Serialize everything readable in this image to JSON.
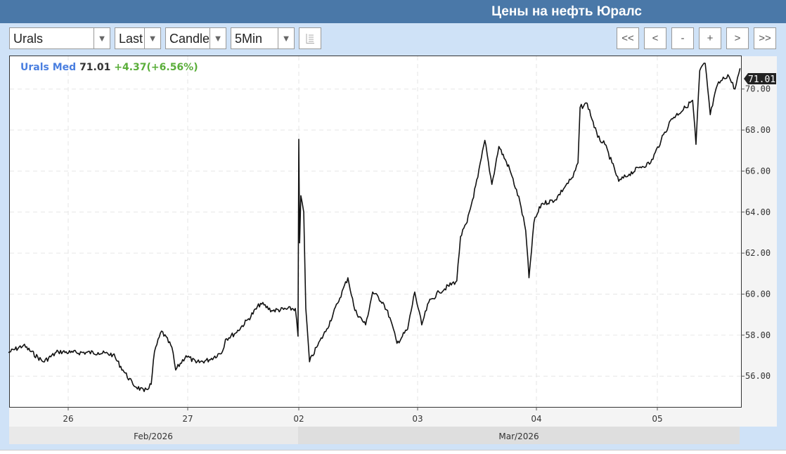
{
  "header": {
    "title": "Цены на нефть Юралс"
  },
  "toolbar": {
    "instrument": "Urals",
    "price_type": "Last",
    "chart_type": "Candle",
    "interval": "5Min",
    "nav": [
      "<<",
      "<",
      "-",
      "+",
      ">",
      ">>"
    ]
  },
  "legend": {
    "name": "Urals Med",
    "last": "71.01",
    "change": "+4.37(+6.56%)",
    "name_color": "#4a7fe0",
    "change_color": "#5aae3a"
  },
  "chart_data": {
    "type": "line",
    "title": "",
    "last_price_label": "71.01",
    "ylim": [
      54.5,
      71.6
    ],
    "yticks": [
      56,
      58,
      60,
      62,
      64,
      66,
      68,
      70
    ],
    "ytick_labels": [
      "56.00",
      "58.00",
      "60.00",
      "62.00",
      "64.00",
      "66.00",
      "68.00",
      "70.00"
    ],
    "xtick_labels": [
      "26",
      "27",
      "02",
      "03",
      "04",
      "05"
    ],
    "month_labels": [
      "Feb/2026",
      "Mar/2026"
    ],
    "grid": true,
    "series": [
      {
        "points": [
          [
            "02-25 12:00",
            57.15
          ],
          [
            "02-25 15:00",
            57.5
          ],
          [
            "02-25 19:00",
            56.7
          ],
          [
            "02-25 22:00",
            57.2
          ],
          [
            "02-26 00:30",
            57.15
          ],
          [
            "02-26 06:00",
            57.15
          ],
          [
            "02-26 09:00",
            57.05
          ],
          [
            "02-26 11:00",
            56.3
          ],
          [
            "02-26 13:00",
            55.6
          ],
          [
            "02-26 15:15",
            55.25
          ],
          [
            "02-26 16:40",
            55.6
          ],
          [
            "02-26 17:20",
            57.2
          ],
          [
            "02-26 18:45",
            58.2
          ],
          [
            "02-26 20:50",
            57.4
          ],
          [
            "02-26 21:35",
            56.3
          ],
          [
            "02-26 23:40",
            57.0
          ],
          [
            "02-27 01:50",
            56.65
          ],
          [
            "02-27 04:40",
            56.8
          ],
          [
            "02-27 07:30",
            57.2
          ],
          [
            "02-27 08:10",
            57.8
          ],
          [
            "02-27 10:20",
            58.1
          ],
          [
            "02-27 13:10",
            58.8
          ],
          [
            "02-27 15:45",
            59.55
          ],
          [
            "02-27 18:10",
            59.2
          ],
          [
            "02-27 23:15",
            59.3
          ],
          [
            "02-27 23:50",
            57.95
          ],
          [
            "03-02 00:00",
            67.55
          ],
          [
            "03-02 00:10",
            62.5
          ],
          [
            "03-02 00:25",
            64.8
          ],
          [
            "03-02 01:00",
            64.0
          ],
          [
            "03-02 01:25",
            59.3
          ],
          [
            "03-02 02:10",
            56.7
          ],
          [
            "03-02 03:35",
            57.4
          ],
          [
            "03-02 05:40",
            58.3
          ],
          [
            "03-02 07:50",
            59.55
          ],
          [
            "03-02 09:55",
            60.8
          ],
          [
            "03-02 11:20",
            59.2
          ],
          [
            "03-02 13:30",
            58.5
          ],
          [
            "03-02 14:55",
            60.1
          ],
          [
            "03-02 17:00",
            59.6
          ],
          [
            "03-02 18:25",
            58.85
          ],
          [
            "03-02 19:50",
            57.6
          ],
          [
            "03-02 22:00",
            58.3
          ],
          [
            "03-02 23:25",
            60.1
          ],
          [
            "03-03 00:50",
            58.5
          ],
          [
            "03-03 02:15",
            59.6
          ],
          [
            "03-03 04:20",
            60.1
          ],
          [
            "03-03 07:55",
            60.65
          ],
          [
            "03-03 08:40",
            62.8
          ],
          [
            "03-03 10:00",
            63.5
          ],
          [
            "03-03 12:10",
            65.7
          ],
          [
            "03-03 13:35",
            67.5
          ],
          [
            "03-03 15:00",
            65.35
          ],
          [
            "03-03 16:25",
            67.2
          ],
          [
            "03-03 18:35",
            66.1
          ],
          [
            "03-03 20:40",
            64.5
          ],
          [
            "03-03 21:50",
            63.1
          ],
          [
            "03-03 22:30",
            60.8
          ],
          [
            "03-03 23:30",
            63.5
          ],
          [
            "03-04 01:00",
            64.4
          ],
          [
            "03-04 03:45",
            64.6
          ],
          [
            "03-04 05:50",
            65.3
          ],
          [
            "03-04 07:15",
            65.7
          ],
          [
            "03-04 08:15",
            66.4
          ],
          [
            "03-04 08:40",
            69.1
          ],
          [
            "03-04 10:05",
            69.3
          ],
          [
            "03-04 12:10",
            67.65
          ],
          [
            "03-04 13:35",
            67.3
          ],
          [
            "03-04 15:00",
            66.4
          ],
          [
            "03-04 16:20",
            65.5
          ],
          [
            "03-04 18:25",
            65.85
          ],
          [
            "03-04 20:35",
            66.2
          ],
          [
            "03-04 22:40",
            66.4
          ],
          [
            "03-05 00:45",
            67.5
          ],
          [
            "03-05 02:50",
            68.55
          ],
          [
            "03-05 05:35",
            69.1
          ],
          [
            "03-05 07:00",
            69.45
          ],
          [
            "03-05 07:40",
            67.3
          ],
          [
            "03-05 08:25",
            70.9
          ],
          [
            "03-05 09:30",
            71.25
          ],
          [
            "03-05 10:30",
            68.75
          ],
          [
            "03-05 11:55",
            70.2
          ],
          [
            "03-05 14:00",
            70.7
          ],
          [
            "03-05 15:25",
            70.0
          ],
          [
            "03-05 16:25",
            71.01
          ]
        ]
      }
    ]
  }
}
